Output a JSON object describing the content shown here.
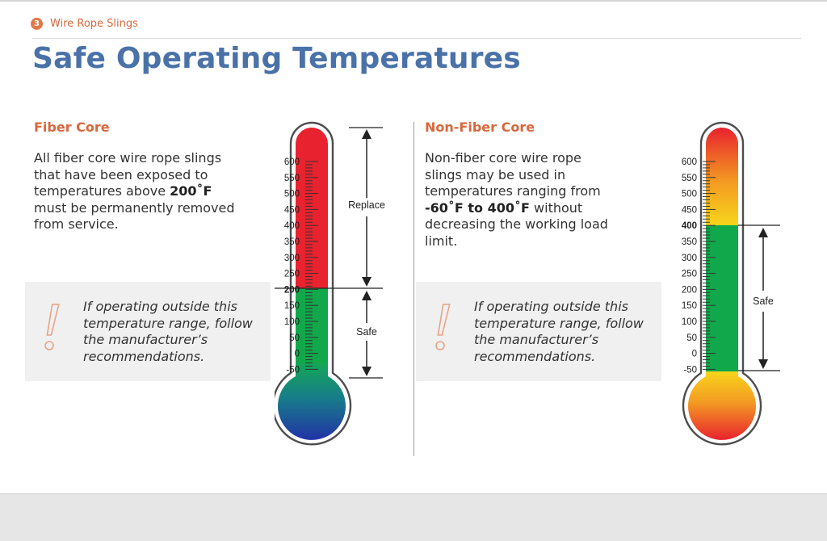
{
  "breadcrumb": {
    "number": "3",
    "label": "Wire Rope Slings"
  },
  "title": "Safe Operating Temperatures",
  "fiber": {
    "heading": "Fiber Core",
    "text_1": "All fiber core wire rope slings that have been exposed to temperatures above ",
    "text_bold": "200˚F",
    "text_2": " must be permanently removed from service.",
    "note": "If operating outside this temperature range, follow the manufacturer’s recommendations.",
    "scale": [
      "600",
      "550",
      "500",
      "450",
      "400",
      "350",
      "300",
      "250",
      "200",
      "150",
      "100",
      "50",
      "0",
      "-50"
    ],
    "threshold_label": "200",
    "replace_label": "Replace",
    "safe_label": "Safe"
  },
  "nonfiber": {
    "heading": "Non-Fiber Core",
    "text_1": "Non-fiber core wire rope slings may be used in temperatures ranging from ",
    "text_bold": "-60˚F to 400˚F",
    "text_2": " without decreasing the working load limit.",
    "note": "If operating outside this temperature range, follow the manufacturer’s recommendations.",
    "scale": [
      "600",
      "550",
      "500",
      "450",
      "400",
      "350",
      "300",
      "250",
      "200",
      "150",
      "100",
      "50",
      "0",
      "-50"
    ],
    "threshold_label": "400",
    "safe_label": "Safe"
  },
  "colors": {
    "accent": "#d9683c",
    "title": "#4a72a8",
    "red": "#e8222e",
    "green": "#10a84a",
    "yellow": "#f7d21c",
    "blue": "#1e3fa0"
  },
  "icons": {
    "note": "exclamation-icon"
  }
}
